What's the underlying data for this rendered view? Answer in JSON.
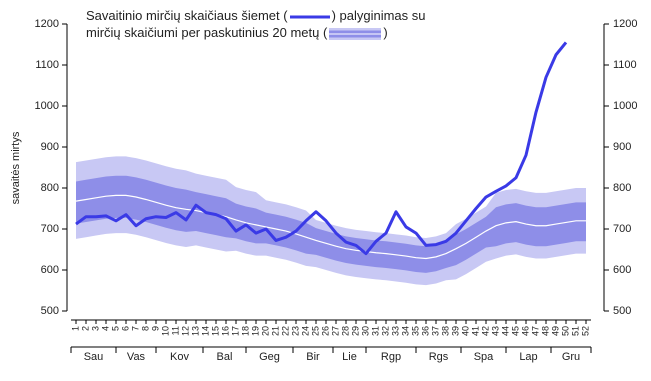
{
  "chart_data": {
    "type": "line",
    "y_label": "savaitės mirtys",
    "legend": {
      "line1_before": "Savaitinio mirčių skaičiaus šiemet (",
      "line1_after": ") palyginimas su",
      "line2_before": "mirčių skaičiumi per paskutinius 20 metų (",
      "line2_after": ")"
    },
    "x": [
      1,
      2,
      3,
      4,
      5,
      6,
      7,
      8,
      9,
      10,
      11,
      12,
      13,
      14,
      15,
      16,
      17,
      18,
      19,
      20,
      21,
      22,
      23,
      24,
      25,
      26,
      27,
      28,
      29,
      30,
      31,
      32,
      33,
      34,
      35,
      36,
      37,
      38,
      39,
      40,
      41,
      42,
      43,
      44,
      45,
      46,
      47,
      48,
      49,
      50,
      51,
      52
    ],
    "xlim": [
      0.5,
      52.5
    ],
    "ylim": [
      500,
      1200
    ],
    "yticks": [
      500,
      600,
      700,
      800,
      900,
      1000,
      1100,
      1200
    ],
    "months": [
      "Sau",
      "Vas",
      "Kov",
      "Bal",
      "Geg",
      "Bir",
      "Lie",
      "Rgp",
      "Rgs",
      "Spa",
      "Lap",
      "Gru"
    ],
    "bands": [
      {
        "color": "#c8c8f4",
        "high": [
          863,
          867,
          871,
          875,
          877,
          877,
          873,
          867,
          860,
          853,
          847,
          843,
          835,
          830,
          825,
          820,
          802,
          795,
          790,
          770,
          765,
          760,
          753,
          745,
          722,
          715,
          708,
          702,
          698,
          695,
          692,
          690,
          687,
          684,
          680,
          678,
          682,
          690,
          712,
          725,
          740,
          755,
          788,
          795,
          798,
          792,
          788,
          788,
          792,
          796,
          800,
          800
        ],
        "low": [
          676,
          680,
          684,
          688,
          690,
          690,
          686,
          680,
          673,
          666,
          660,
          656,
          660,
          655,
          650,
          645,
          647,
          640,
          635,
          635,
          630,
          625,
          618,
          610,
          607,
          600,
          593,
          587,
          583,
          580,
          577,
          575,
          572,
          569,
          565,
          563,
          567,
          575,
          577,
          590,
          605,
          620,
          628,
          635,
          638,
          632,
          628,
          628,
          632,
          636,
          640,
          640
        ]
      },
      {
        "color": "#8e8ee8",
        "high": [
          816,
          820,
          824,
          828,
          830,
          830,
          826,
          820,
          813,
          806,
          800,
          796,
          790,
          785,
          780,
          775,
          762,
          755,
          750,
          740,
          735,
          730,
          723,
          715,
          702,
          695,
          688,
          682,
          678,
          675,
          672,
          670,
          667,
          664,
          660,
          658,
          662,
          670,
          687,
          700,
          715,
          730,
          753,
          760,
          763,
          757,
          753,
          753,
          757,
          761,
          765,
          765
        ],
        "low": [
          713,
          717,
          721,
          725,
          727,
          727,
          723,
          717,
          710,
          703,
          697,
          693,
          695,
          690,
          685,
          680,
          677,
          670,
          665,
          665,
          660,
          655,
          648,
          640,
          637,
          630,
          623,
          617,
          613,
          610,
          607,
          605,
          602,
          599,
          595,
          593,
          597,
          605,
          612,
          625,
          640,
          655,
          658,
          665,
          668,
          662,
          658,
          658,
          662,
          666,
          670,
          670
        ]
      }
    ],
    "median": {
      "color": "#ffffff",
      "values": [
        768,
        772,
        776,
        780,
        782,
        782,
        778,
        772,
        765,
        758,
        752,
        748,
        745,
        740,
        735,
        730,
        722,
        715,
        710,
        705,
        700,
        695,
        688,
        680,
        672,
        665,
        658,
        652,
        648,
        645,
        642,
        640,
        637,
        634,
        630,
        628,
        632,
        640,
        652,
        665,
        680,
        695,
        708,
        715,
        718,
        712,
        708,
        708,
        712,
        716,
        720,
        720
      ]
    },
    "series": [
      {
        "color": "#3a3ae6",
        "values": [
          712,
          730,
          730,
          732,
          720,
          735,
          708,
          725,
          730,
          728,
          740,
          722,
          758,
          740,
          735,
          725,
          695,
          710,
          690,
          700,
          672,
          680,
          695,
          720,
          742,
          720,
          690,
          668,
          660,
          640,
          670,
          690,
          742,
          705,
          690,
          660,
          662,
          670,
          690,
          720,
          750,
          778,
          792,
          805,
          825,
          880,
          985,
          1070,
          1125,
          1155,
          null,
          null
        ]
      }
    ]
  }
}
